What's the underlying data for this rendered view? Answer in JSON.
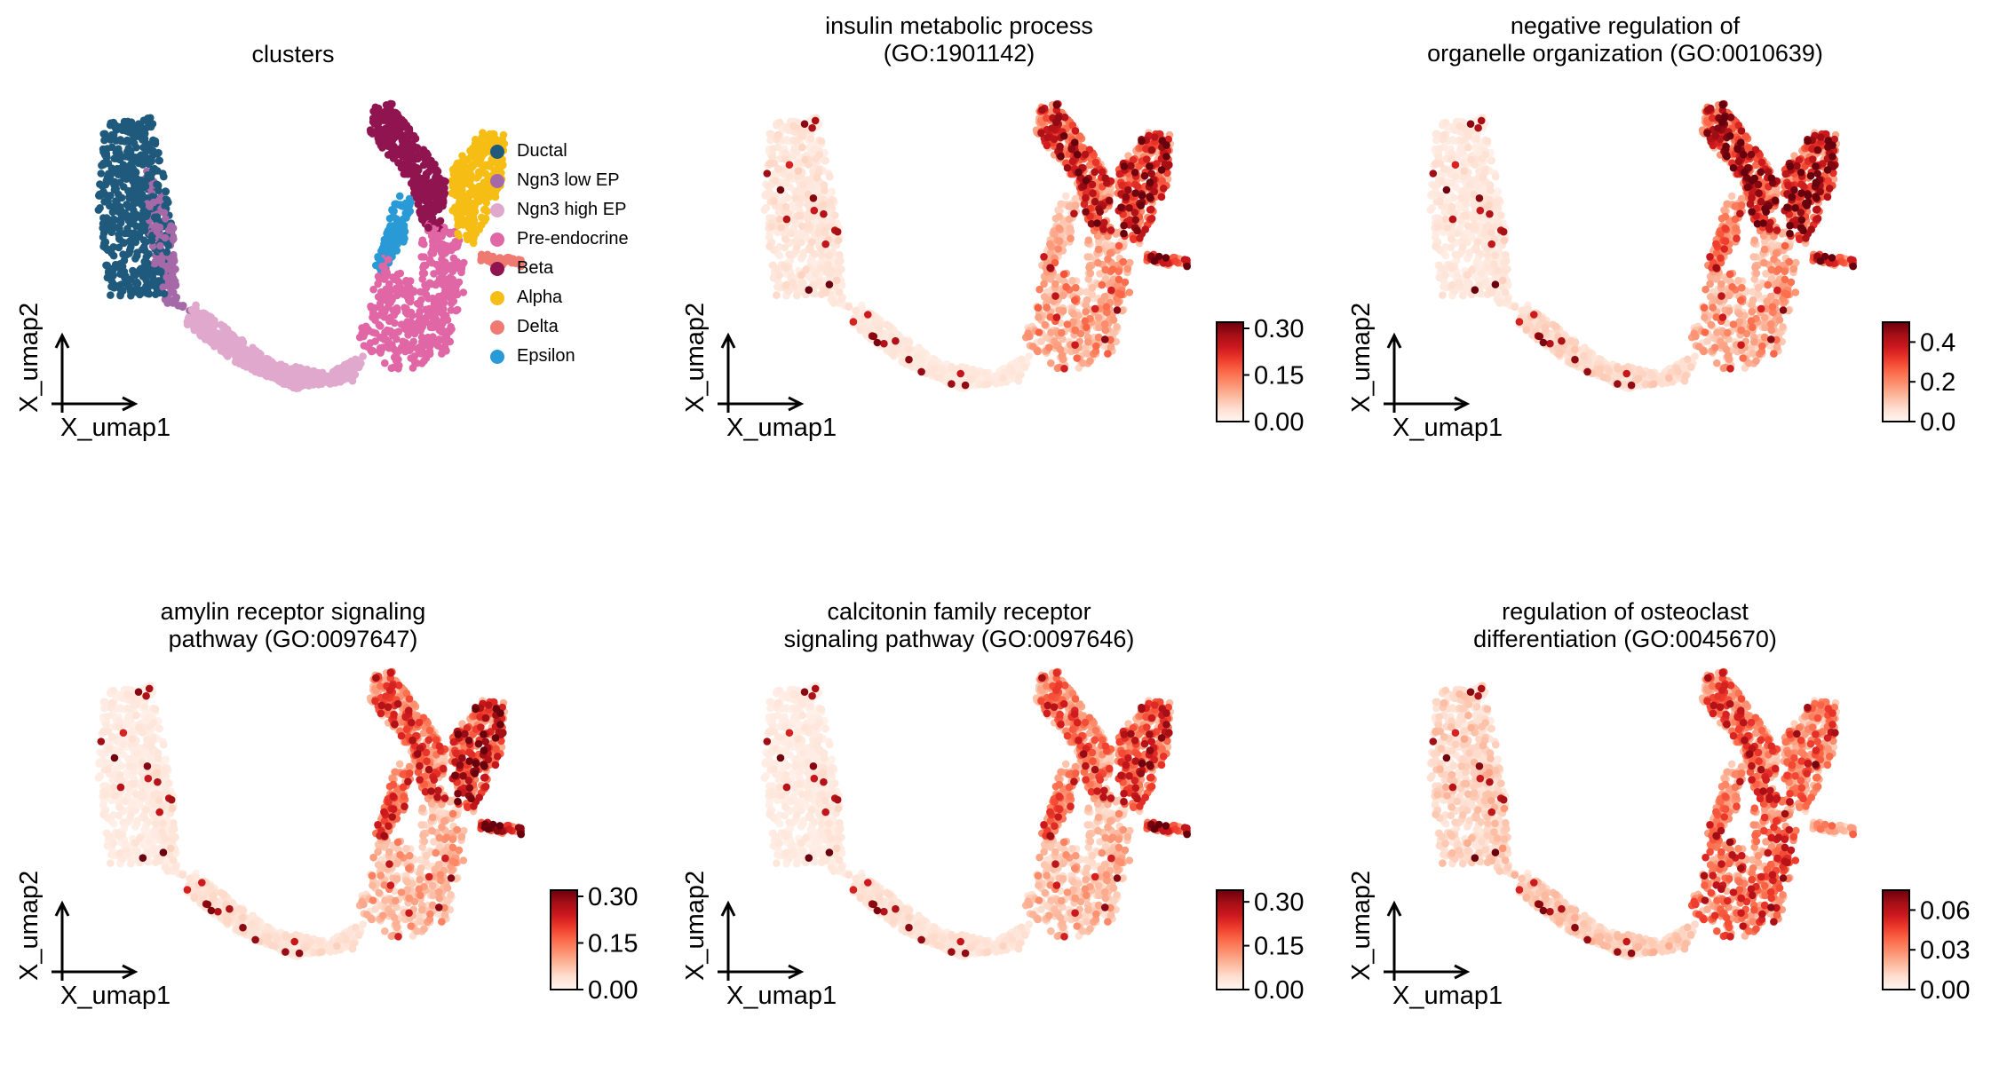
{
  "chart_data": [
    {
      "type": "scatter",
      "title": "clusters",
      "xlabel": "X_umap1",
      "ylabel": "X_umap2",
      "color_mode": "categorical",
      "legend_position": "right",
      "legend": [
        {
          "name": "Ductal",
          "color": "#1f5a7d"
        },
        {
          "name": "Ngn3 low EP",
          "color": "#a569a8"
        },
        {
          "name": "Ngn3 high EP",
          "color": "#e0a8cc"
        },
        {
          "name": "Pre-endocrine",
          "color": "#e066a6"
        },
        {
          "name": "Beta",
          "color": "#8f1450"
        },
        {
          "name": "Alpha",
          "color": "#f6be15"
        },
        {
          "name": "Delta",
          "color": "#ef7a72"
        },
        {
          "name": "Epsilon",
          "color": "#2a9ad6"
        }
      ]
    },
    {
      "type": "scatter",
      "title": "insulin metabolic process\n(GO:1901142)",
      "xlabel": "X_umap1",
      "ylabel": "X_umap2",
      "color_mode": "continuous",
      "colormap": "Reds",
      "colorbar": {
        "min": 0.0,
        "max": 0.32,
        "ticks": [
          "0.00",
          "0.15",
          "0.30"
        ],
        "tick_values": [
          0.0,
          0.15,
          0.3
        ]
      },
      "high_clusters": {
        "Beta": 0.19,
        "Alpha": 0.2,
        "Delta": 0.24,
        "Epsilon": 0.08,
        "Pre-endocrine": 0.1,
        "Ngn3 high EP": 0.02,
        "Ngn3 low EP": 0.03,
        "Ductal": 0.03
      }
    },
    {
      "type": "scatter",
      "title": "negative regulation of\norganelle organization (GO:0010639)",
      "xlabel": "X_umap1",
      "ylabel": "X_umap2",
      "color_mode": "continuous",
      "colormap": "Reds",
      "colorbar": {
        "min": 0.0,
        "max": 0.5,
        "ticks": [
          "0.0",
          "0.2",
          "0.4"
        ],
        "tick_values": [
          0.0,
          0.2,
          0.4
        ]
      },
      "high_clusters": {
        "Beta": 0.34,
        "Alpha": 0.34,
        "Delta": 0.36,
        "Epsilon": 0.22,
        "Pre-endocrine": 0.15,
        "Ngn3 high EP": 0.06,
        "Ngn3 low EP": 0.05,
        "Ductal": 0.04
      }
    },
    {
      "type": "scatter",
      "title": "amylin receptor signaling\npathway (GO:0097647)",
      "xlabel": "X_umap1",
      "ylabel": "X_umap2",
      "color_mode": "continuous",
      "colormap": "Reds",
      "colorbar": {
        "min": 0.0,
        "max": 0.32,
        "ticks": [
          "0.00",
          "0.15",
          "0.30"
        ],
        "tick_values": [
          0.0,
          0.15,
          0.3
        ]
      },
      "high_clusters": {
        "Beta": 0.15,
        "Alpha": 0.2,
        "Delta": 0.29,
        "Epsilon": 0.17,
        "Pre-endocrine": 0.08,
        "Ngn3 high EP": 0.03,
        "Ngn3 low EP": 0.03,
        "Ductal": 0.02
      }
    },
    {
      "type": "scatter",
      "title": "calcitonin family receptor\nsignaling pathway (GO:0097646)",
      "xlabel": "X_umap1",
      "ylabel": "X_umap2",
      "color_mode": "continuous",
      "colormap": "Reds",
      "colorbar": {
        "min": 0.0,
        "max": 0.34,
        "ticks": [
          "0.00",
          "0.15",
          "0.30"
        ],
        "tick_values": [
          0.0,
          0.15,
          0.3
        ]
      },
      "high_clusters": {
        "Beta": 0.14,
        "Alpha": 0.18,
        "Delta": 0.26,
        "Epsilon": 0.16,
        "Pre-endocrine": 0.08,
        "Ngn3 high EP": 0.03,
        "Ngn3 low EP": 0.03,
        "Ductal": 0.02
      }
    },
    {
      "type": "scatter",
      "title": "regulation of osteoclast\ndifferentiation (GO:0045670)",
      "xlabel": "X_umap1",
      "ylabel": "X_umap2",
      "color_mode": "continuous",
      "colormap": "Reds",
      "colorbar": {
        "min": 0.0,
        "max": 0.075,
        "ticks": [
          "0.00",
          "0.03",
          "0.06"
        ],
        "tick_values": [
          0.0,
          0.03,
          0.06
        ]
      },
      "high_clusters": {
        "Beta": 0.035,
        "Alpha": 0.03,
        "Delta": 0.025,
        "Epsilon": 0.03,
        "Pre-endocrine": 0.038,
        "Ngn3 high EP": 0.012,
        "Ngn3 low EP": 0.015,
        "Ductal": 0.012
      }
    }
  ],
  "umap_clusters": [
    {
      "name": "Ductal",
      "n": 520,
      "region": [
        [
          1.6,
          9.2
        ],
        [
          3.0,
          9.4
        ],
        [
          3.6,
          6.0
        ],
        [
          3.4,
          3.3
        ],
        [
          1.8,
          3.2
        ],
        [
          1.4,
          6.0
        ]
      ]
    },
    {
      "name": "Ngn3 low EP",
      "n": 110,
      "region": [
        [
          2.8,
          7.8
        ],
        [
          3.6,
          6.0
        ],
        [
          3.8,
          3.1
        ],
        [
          4.4,
          2.6
        ],
        [
          3.4,
          3.0
        ],
        [
          2.9,
          5.0
        ]
      ]
    },
    {
      "name": "Ngn3 high EP",
      "n": 520,
      "region": [
        [
          4.2,
          3.0
        ],
        [
          5.3,
          2.0
        ],
        [
          6.6,
          0.9
        ],
        [
          8.2,
          0.6
        ],
        [
          9.2,
          1.2
        ],
        [
          8.9,
          0.3
        ],
        [
          7.2,
          0.0
        ],
        [
          5.6,
          0.8
        ],
        [
          4.0,
          2.2
        ]
      ]
    },
    {
      "name": "Pre-endocrine",
      "n": 430,
      "region": [
        [
          9.0,
          1.6
        ],
        [
          10.2,
          0.5
        ],
        [
          11.6,
          1.2
        ],
        [
          12.2,
          3.8
        ],
        [
          11.9,
          5.6
        ],
        [
          10.9,
          5.8
        ],
        [
          10.8,
          3.4
        ],
        [
          9.8,
          4.8
        ],
        [
          9.4,
          3.4
        ]
      ]
    },
    {
      "name": "Beta",
      "n": 330,
      "region": [
        [
          9.5,
          9.8
        ],
        [
          10.0,
          9.9
        ],
        [
          11.6,
          7.2
        ],
        [
          11.4,
          5.4
        ],
        [
          10.9,
          5.6
        ],
        [
          10.6,
          7.0
        ],
        [
          9.3,
          9.0
        ]
      ]
    },
    {
      "name": "Alpha",
      "n": 300,
      "region": [
        [
          11.7,
          7.6
        ],
        [
          12.6,
          8.9
        ],
        [
          13.3,
          8.8
        ],
        [
          13.2,
          7.0
        ],
        [
          12.4,
          5.0
        ],
        [
          11.8,
          5.4
        ]
      ]
    },
    {
      "name": "Delta",
      "n": 40,
      "region": [
        [
          12.6,
          4.7
        ],
        [
          13.8,
          4.5
        ],
        [
          13.8,
          4.2
        ],
        [
          12.6,
          4.4
        ]
      ]
    },
    {
      "name": "Epsilon",
      "n": 110,
      "region": [
        [
          10.2,
          6.8
        ],
        [
          10.6,
          6.6
        ],
        [
          10.4,
          5.2
        ],
        [
          9.7,
          4.0
        ],
        [
          9.5,
          4.2
        ],
        [
          9.8,
          5.6
        ]
      ]
    }
  ],
  "axis_range": {
    "x": [
      0,
      14.5
    ],
    "y": [
      -0.5,
      10.4
    ]
  }
}
